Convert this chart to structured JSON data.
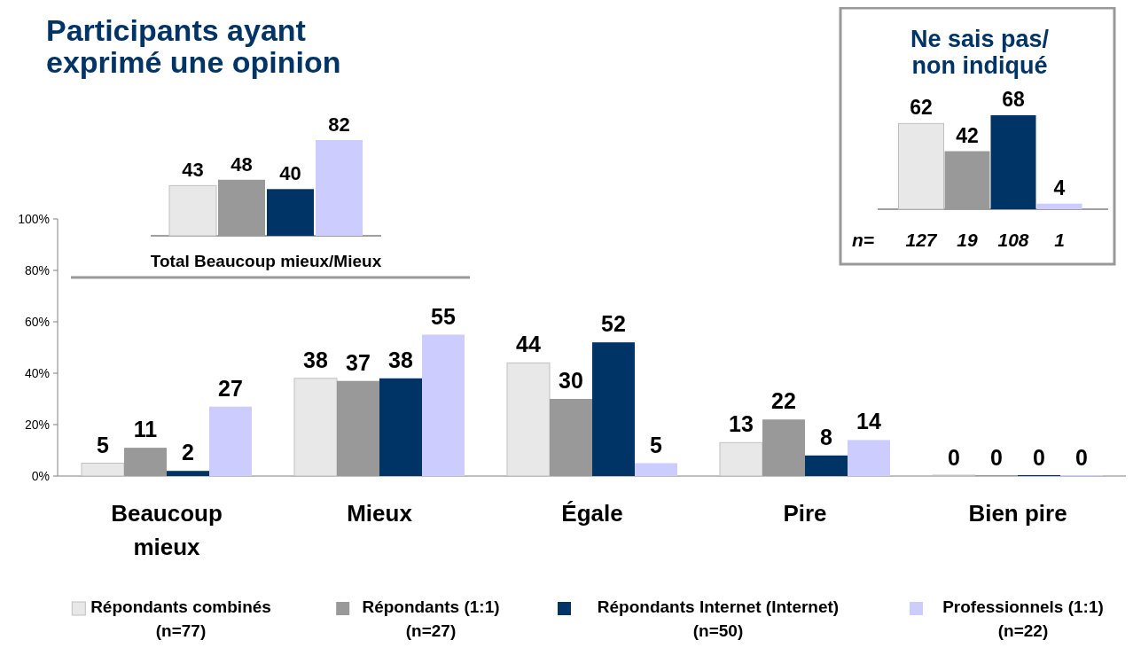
{
  "chart_data": [
    {
      "type": "bar",
      "categories": [
        "Beaucoup\nmieux",
        "Mieux",
        "Égale",
        "Pire",
        "Bien pire"
      ],
      "series": [
        {
          "name": "Répondants combinés\n(n=77)",
          "color": "#e8e8e8",
          "values": [
            5,
            38,
            44,
            13,
            0
          ]
        },
        {
          "name": "Répondants (1:1)\n(n=27)",
          "color": "#999999",
          "values": [
            11,
            37,
            30,
            22,
            0
          ]
        },
        {
          "name": "Répondants Internet (Internet)\n(n=50)",
          "color": "#003366",
          "values": [
            2,
            38,
            52,
            8,
            0
          ]
        },
        {
          "name": "Professionnels (1:1)\n(n=22)",
          "color": "#ccccff",
          "values": [
            27,
            55,
            5,
            14,
            0
          ]
        }
      ],
      "ylim": [
        0,
        100
      ],
      "yticks": [
        {
          "value": 0,
          "label": "0%"
        },
        {
          "value": 20,
          "label": "20%"
        },
        {
          "value": 40,
          "label": "40%"
        },
        {
          "value": 60,
          "label": "60%"
        },
        {
          "value": 80,
          "label": "80%"
        },
        {
          "value": 100,
          "label": "100%"
        }
      ],
      "data_labels": true,
      "legend": "bottom"
    },
    {
      "type": "bar",
      "title": "Participants ayant\nexprimé une opinion",
      "xlabel": "Total Beaucoup mieux/Mieux",
      "categories": [
        null,
        null,
        null,
        null
      ],
      "values": [
        43,
        48,
        40,
        82
      ],
      "colors": [
        "#e8e8e8",
        "#999999",
        "#003366",
        "#ccccff"
      ],
      "data_labels": true
    },
    {
      "type": "bar",
      "title": "Ne sais pas/\nnon indiqué",
      "xlabel": "n=",
      "categories": [
        "127",
        "19",
        "108",
        "1"
      ],
      "values": [
        62,
        42,
        68,
        4
      ],
      "colors": [
        "#e8e8e8",
        "#999999",
        "#003366",
        "#ccccff"
      ],
      "data_labels": true
    }
  ]
}
